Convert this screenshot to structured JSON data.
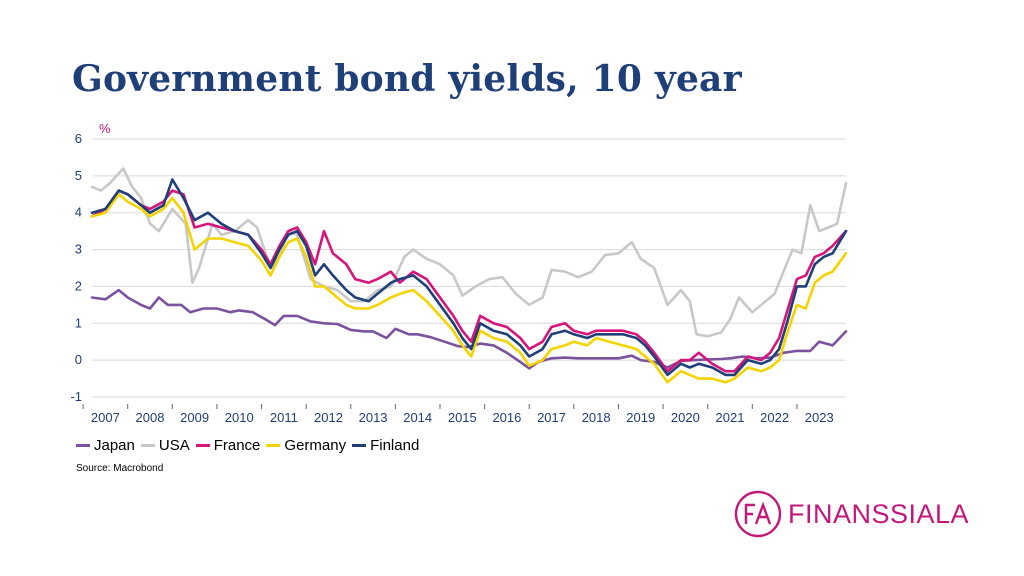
{
  "title": "Government bond yields, 10 year",
  "source": "Source: Macrobond",
  "logo": {
    "text": "FINANSSIALA",
    "mark": "FA",
    "color": "#c2187a"
  },
  "chart_data": {
    "type": "line",
    "title": "Government bond yields, 10 year",
    "unit_label": "%",
    "xlabel": "",
    "ylabel": "",
    "ylim": [
      -1,
      6
    ],
    "yticks": [
      "-1",
      "0",
      "1",
      "2",
      "3",
      "4",
      "5",
      "6"
    ],
    "xlim": [
      2006.7,
      2023.6
    ],
    "xticks": [
      "2007",
      "2008",
      "2009",
      "2010",
      "2011",
      "2012",
      "2013",
      "2014",
      "2015",
      "2016",
      "2017",
      "2018",
      "2019",
      "2020",
      "2021",
      "2022",
      "2023"
    ],
    "grid": "horizontal",
    "legend_position": "bottom-left",
    "series": [
      {
        "name": "Japan",
        "color": "#7b529e",
        "x": [
          2006.7,
          2007.0,
          2007.3,
          2007.5,
          2007.8,
          2008.0,
          2008.2,
          2008.4,
          2008.7,
          2008.9,
          2009.2,
          2009.5,
          2009.8,
          2010.0,
          2010.3,
          2010.6,
          2010.8,
          2011.0,
          2011.3,
          2011.6,
          2011.9,
          2012.2,
          2012.5,
          2012.8,
          2013.0,
          2013.3,
          2013.5,
          2013.8,
          2014.0,
          2014.3,
          2014.6,
          2014.9,
          2015.1,
          2015.4,
          2015.7,
          2016.0,
          2016.3,
          2016.5,
          2016.7,
          2017.0,
          2017.3,
          2017.6,
          2017.9,
          2018.2,
          2018.5,
          2018.8,
          2019.0,
          2019.3,
          2019.6,
          2019.9,
          2020.2,
          2020.5,
          2020.8,
          2021.0,
          2021.3,
          2021.6,
          2021.9,
          2022.2,
          2022.5,
          2022.8,
          2023.0,
          2023.3,
          2023.6
        ],
        "values": [
          1.7,
          1.65,
          1.9,
          1.7,
          1.5,
          1.4,
          1.7,
          1.5,
          1.5,
          1.3,
          1.4,
          1.4,
          1.3,
          1.35,
          1.3,
          1.1,
          0.95,
          1.2,
          1.2,
          1.05,
          1.0,
          0.98,
          0.82,
          0.78,
          0.78,
          0.6,
          0.85,
          0.7,
          0.7,
          0.62,
          0.5,
          0.38,
          0.35,
          0.45,
          0.4,
          0.2,
          -0.05,
          -0.22,
          -0.05,
          0.05,
          0.07,
          0.05,
          0.05,
          0.05,
          0.05,
          0.12,
          0.0,
          -0.05,
          -0.2,
          -0.02,
          0.0,
          0.02,
          0.03,
          0.05,
          0.1,
          0.05,
          0.07,
          0.2,
          0.25,
          0.25,
          0.5,
          0.4,
          0.78
        ]
      },
      {
        "name": "USA",
        "color": "#c8c8c8",
        "x": [
          2006.7,
          2006.9,
          2007.1,
          2007.4,
          2007.6,
          2007.8,
          2008.0,
          2008.2,
          2008.5,
          2008.8,
          2008.95,
          2009.1,
          2009.4,
          2009.6,
          2009.9,
          2010.2,
          2010.4,
          2010.7,
          2010.9,
          2011.1,
          2011.3,
          2011.6,
          2011.9,
          2012.2,
          2012.5,
          2012.8,
          2013.1,
          2013.4,
          2013.7,
          2013.9,
          2014.2,
          2014.5,
          2014.8,
          2015.0,
          2015.3,
          2015.6,
          2015.9,
          2016.2,
          2016.5,
          2016.8,
          2017.0,
          2017.3,
          2017.6,
          2017.9,
          2018.2,
          2018.5,
          2018.8,
          2019.0,
          2019.3,
          2019.6,
          2019.9,
          2020.1,
          2020.25,
          2020.5,
          2020.8,
          2021.0,
          2021.2,
          2021.5,
          2021.8,
          2022.0,
          2022.2,
          2022.4,
          2022.6,
          2022.8,
          2023.0,
          2023.2,
          2023.4,
          2023.6
        ],
        "values": [
          4.7,
          4.6,
          4.8,
          5.2,
          4.7,
          4.4,
          3.7,
          3.5,
          4.1,
          3.7,
          2.1,
          2.5,
          3.7,
          3.4,
          3.5,
          3.8,
          3.6,
          2.5,
          2.8,
          3.5,
          3.4,
          2.2,
          2.0,
          1.9,
          1.6,
          1.6,
          1.9,
          2.0,
          2.8,
          3.0,
          2.75,
          2.6,
          2.3,
          1.75,
          2.0,
          2.2,
          2.25,
          1.8,
          1.5,
          1.7,
          2.45,
          2.4,
          2.25,
          2.4,
          2.85,
          2.9,
          3.2,
          2.75,
          2.5,
          1.5,
          1.9,
          1.6,
          0.7,
          0.65,
          0.75,
          1.1,
          1.7,
          1.3,
          1.6,
          1.8,
          2.4,
          3.0,
          2.9,
          4.2,
          3.5,
          3.6,
          3.7,
          4.8
        ]
      },
      {
        "name": "France",
        "color": "#d6147b",
        "x": [
          2006.7,
          2007.0,
          2007.3,
          2007.5,
          2007.8,
          2008.0,
          2008.3,
          2008.5,
          2008.75,
          2009.0,
          2009.3,
          2009.6,
          2009.9,
          2010.2,
          2010.5,
          2010.7,
          2010.9,
          2011.1,
          2011.3,
          2011.5,
          2011.7,
          2011.9,
          2012.1,
          2012.4,
          2012.6,
          2012.9,
          2013.1,
          2013.4,
          2013.6,
          2013.9,
          2014.2,
          2014.5,
          2014.8,
          2015.0,
          2015.2,
          2015.4,
          2015.7,
          2016.0,
          2016.3,
          2016.5,
          2016.8,
          2017.0,
          2017.3,
          2017.5,
          2017.8,
          2018.0,
          2018.3,
          2018.6,
          2018.9,
          2019.1,
          2019.3,
          2019.6,
          2019.9,
          2020.1,
          2020.3,
          2020.6,
          2020.9,
          2021.1,
          2021.4,
          2021.7,
          2021.9,
          2022.1,
          2022.3,
          2022.5,
          2022.7,
          2022.9,
          2023.1,
          2023.3,
          2023.6
        ],
        "values": [
          3.9,
          4.1,
          4.6,
          4.5,
          4.2,
          4.1,
          4.3,
          4.6,
          4.5,
          3.6,
          3.7,
          3.6,
          3.5,
          3.4,
          3.0,
          2.6,
          3.1,
          3.5,
          3.6,
          3.2,
          2.6,
          3.5,
          2.9,
          2.6,
          2.2,
          2.1,
          2.2,
          2.4,
          2.1,
          2.4,
          2.2,
          1.7,
          1.2,
          0.8,
          0.5,
          1.2,
          1.0,
          0.9,
          0.6,
          0.3,
          0.5,
          0.9,
          1.0,
          0.8,
          0.7,
          0.8,
          0.8,
          0.8,
          0.7,
          0.5,
          0.2,
          -0.3,
          0.0,
          0.0,
          0.2,
          -0.1,
          -0.3,
          -0.3,
          0.1,
          0.0,
          0.2,
          0.6,
          1.4,
          2.2,
          2.3,
          2.8,
          2.9,
          3.1,
          3.5
        ]
      },
      {
        "name": "Germany",
        "color": "#f5d300",
        "x": [
          2006.7,
          2007.0,
          2007.3,
          2007.5,
          2007.8,
          2008.0,
          2008.3,
          2008.5,
          2008.75,
          2009.0,
          2009.3,
          2009.6,
          2009.9,
          2010.2,
          2010.5,
          2010.7,
          2010.9,
          2011.1,
          2011.3,
          2011.5,
          2011.7,
          2011.9,
          2012.1,
          2012.4,
          2012.6,
          2012.9,
          2013.1,
          2013.4,
          2013.6,
          2013.9,
          2014.2,
          2014.5,
          2014.8,
          2015.0,
          2015.2,
          2015.4,
          2015.7,
          2016.0,
          2016.3,
          2016.5,
          2016.8,
          2017.0,
          2017.3,
          2017.5,
          2017.8,
          2018.0,
          2018.3,
          2018.6,
          2018.9,
          2019.1,
          2019.3,
          2019.6,
          2019.9,
          2020.1,
          2020.3,
          2020.6,
          2020.9,
          2021.1,
          2021.4,
          2021.7,
          2021.9,
          2022.1,
          2022.3,
          2022.5,
          2022.7,
          2022.9,
          2023.1,
          2023.3,
          2023.6
        ],
        "values": [
          3.9,
          4.0,
          4.5,
          4.3,
          4.1,
          3.9,
          4.1,
          4.4,
          4.0,
          3.0,
          3.3,
          3.3,
          3.2,
          3.1,
          2.7,
          2.3,
          2.8,
          3.2,
          3.3,
          2.8,
          2.0,
          2.0,
          1.8,
          1.5,
          1.4,
          1.4,
          1.5,
          1.7,
          1.8,
          1.9,
          1.6,
          1.2,
          0.8,
          0.4,
          0.1,
          0.8,
          0.6,
          0.5,
          0.2,
          -0.15,
          0.0,
          0.3,
          0.4,
          0.5,
          0.4,
          0.6,
          0.5,
          0.4,
          0.3,
          0.1,
          -0.1,
          -0.6,
          -0.3,
          -0.4,
          -0.5,
          -0.5,
          -0.6,
          -0.5,
          -0.2,
          -0.3,
          -0.2,
          0.0,
          0.8,
          1.5,
          1.4,
          2.1,
          2.3,
          2.4,
          2.9
        ]
      },
      {
        "name": "Finland",
        "color": "#1f3f78",
        "x": [
          2006.7,
          2007.0,
          2007.3,
          2007.5,
          2007.8,
          2008.0,
          2008.3,
          2008.5,
          2008.75,
          2009.0,
          2009.3,
          2009.6,
          2009.9,
          2010.2,
          2010.5,
          2010.7,
          2010.9,
          2011.1,
          2011.3,
          2011.5,
          2011.7,
          2011.9,
          2012.1,
          2012.4,
          2012.6,
          2012.9,
          2013.1,
          2013.4,
          2013.6,
          2013.9,
          2014.2,
          2014.5,
          2014.8,
          2015.0,
          2015.2,
          2015.4,
          2015.7,
          2016.0,
          2016.3,
          2016.5,
          2016.8,
          2017.0,
          2017.3,
          2017.5,
          2017.8,
          2018.0,
          2018.3,
          2018.6,
          2018.9,
          2019.1,
          2019.3,
          2019.6,
          2019.9,
          2020.1,
          2020.3,
          2020.6,
          2020.9,
          2021.1,
          2021.4,
          2021.7,
          2021.9,
          2022.1,
          2022.3,
          2022.5,
          2022.7,
          2022.9,
          2023.1,
          2023.3,
          2023.6
        ],
        "values": [
          4.0,
          4.1,
          4.6,
          4.5,
          4.2,
          4.0,
          4.2,
          4.9,
          4.4,
          3.8,
          4.0,
          3.7,
          3.5,
          3.4,
          2.9,
          2.5,
          3.0,
          3.4,
          3.5,
          3.1,
          2.3,
          2.6,
          2.3,
          1.9,
          1.7,
          1.6,
          1.8,
          2.1,
          2.2,
          2.3,
          2.0,
          1.5,
          1.0,
          0.6,
          0.3,
          1.0,
          0.8,
          0.7,
          0.4,
          0.1,
          0.3,
          0.7,
          0.8,
          0.7,
          0.6,
          0.7,
          0.7,
          0.7,
          0.6,
          0.4,
          0.1,
          -0.4,
          -0.1,
          -0.2,
          -0.1,
          -0.2,
          -0.4,
          -0.4,
          0.0,
          -0.1,
          0.0,
          0.3,
          1.1,
          2.0,
          2.0,
          2.6,
          2.8,
          2.9,
          3.5
        ]
      }
    ]
  }
}
